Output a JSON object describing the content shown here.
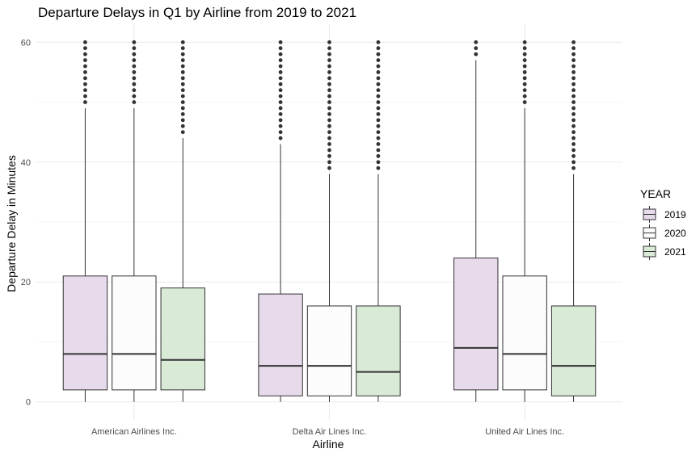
{
  "chart_data": {
    "type": "boxplot",
    "title": "Departure Delays in Q1 by Airline from 2019 to 2021",
    "xlabel": "Airline",
    "ylabel": "Departure Delay in Minutes",
    "ylim": [
      -3,
      63
    ],
    "yticks": [
      0,
      20,
      40,
      60
    ],
    "grid": true,
    "legend": {
      "title": "YEAR",
      "placement": "right",
      "entries": [
        "2019",
        "2020",
        "2021"
      ]
    },
    "colors": {
      "2019": "#e7dbeb",
      "2020": "#fcfcfc",
      "2021": "#d9ead7"
    },
    "categories": [
      "American Airlines Inc.",
      "Delta Air Lines Inc.",
      "United Air Lines Inc."
    ],
    "series": [
      {
        "name": "2019",
        "boxes": [
          {
            "min": 0,
            "q1": 2,
            "median": 8,
            "q3": 21,
            "max": 49,
            "outliers_from": 50,
            "outliers_to": 60
          },
          {
            "min": 0,
            "q1": 1,
            "median": 6,
            "q3": 18,
            "max": 43,
            "outliers_from": 44,
            "outliers_to": 60
          },
          {
            "min": 0,
            "q1": 2,
            "median": 9,
            "q3": 24,
            "max": 57,
            "outliers_from": 58,
            "outliers_to": 60
          }
        ]
      },
      {
        "name": "2020",
        "boxes": [
          {
            "min": 0,
            "q1": 2,
            "median": 8,
            "q3": 21,
            "max": 49,
            "outliers_from": 50,
            "outliers_to": 60
          },
          {
            "min": 0,
            "q1": 1,
            "median": 6,
            "q3": 16,
            "max": 38,
            "outliers_from": 39,
            "outliers_to": 60
          },
          {
            "min": 0,
            "q1": 2,
            "median": 8,
            "q3": 21,
            "max": 49,
            "outliers_from": 50,
            "outliers_to": 60
          }
        ]
      },
      {
        "name": "2021",
        "boxes": [
          {
            "min": 0,
            "q1": 2,
            "median": 7,
            "q3": 19,
            "max": 44,
            "outliers_from": 45,
            "outliers_to": 60
          },
          {
            "min": 0,
            "q1": 1,
            "median": 5,
            "q3": 16,
            "max": 38,
            "outliers_from": 39,
            "outliers_to": 60
          },
          {
            "min": 0,
            "q1": 1,
            "median": 6,
            "q3": 16,
            "max": 38,
            "outliers_from": 39,
            "outliers_to": 60
          }
        ]
      }
    ]
  }
}
